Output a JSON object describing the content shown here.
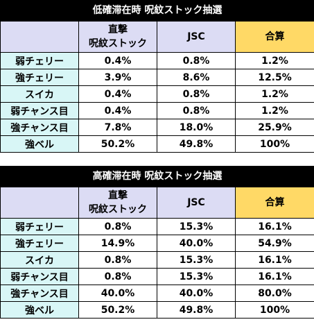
{
  "tables": [
    {
      "title": "低確滞在時 呪紋ストック抽選",
      "columns": {
        "col1_line1": "直撃",
        "col1_line2": "呪紋ストック",
        "col2": "JSC",
        "col3": "合算"
      },
      "rows": [
        {
          "label": "弱チェリー",
          "direct": "0.4%",
          "jsc": "0.8%",
          "total": "1.2%"
        },
        {
          "label": "強チェリー",
          "direct": "3.9%",
          "jsc": "8.6%",
          "total": "12.5%"
        },
        {
          "label": "スイカ",
          "direct": "0.4%",
          "jsc": "0.8%",
          "total": "1.2%"
        },
        {
          "label": "弱チャンス目",
          "direct": "0.4%",
          "jsc": "0.8%",
          "total": "1.2%"
        },
        {
          "label": "強チャンス目",
          "direct": "7.8%",
          "jsc": "18.0%",
          "total": "25.9%"
        },
        {
          "label": "強ベル",
          "direct": "50.2%",
          "jsc": "49.8%",
          "total": "100%"
        }
      ]
    },
    {
      "title": "高確滞在時 呪紋ストック抽選",
      "columns": {
        "col1_line1": "直撃",
        "col1_line2": "呪紋ストック",
        "col2": "JSC",
        "col3": "合算"
      },
      "rows": [
        {
          "label": "弱チェリー",
          "direct": "0.8%",
          "jsc": "15.3%",
          "total": "16.1%"
        },
        {
          "label": "強チェリー",
          "direct": "14.9%",
          "jsc": "40.0%",
          "total": "54.9%"
        },
        {
          "label": "スイカ",
          "direct": "0.8%",
          "jsc": "15.3%",
          "total": "16.1%"
        },
        {
          "label": "弱チャンス目",
          "direct": "0.8%",
          "jsc": "15.3%",
          "total": "16.1%"
        },
        {
          "label": "強チャンス目",
          "direct": "40.0%",
          "jsc": "40.0%",
          "total": "80.0%"
        },
        {
          "label": "強ベル",
          "direct": "50.2%",
          "jsc": "49.8%",
          "total": "100%"
        }
      ]
    }
  ]
}
